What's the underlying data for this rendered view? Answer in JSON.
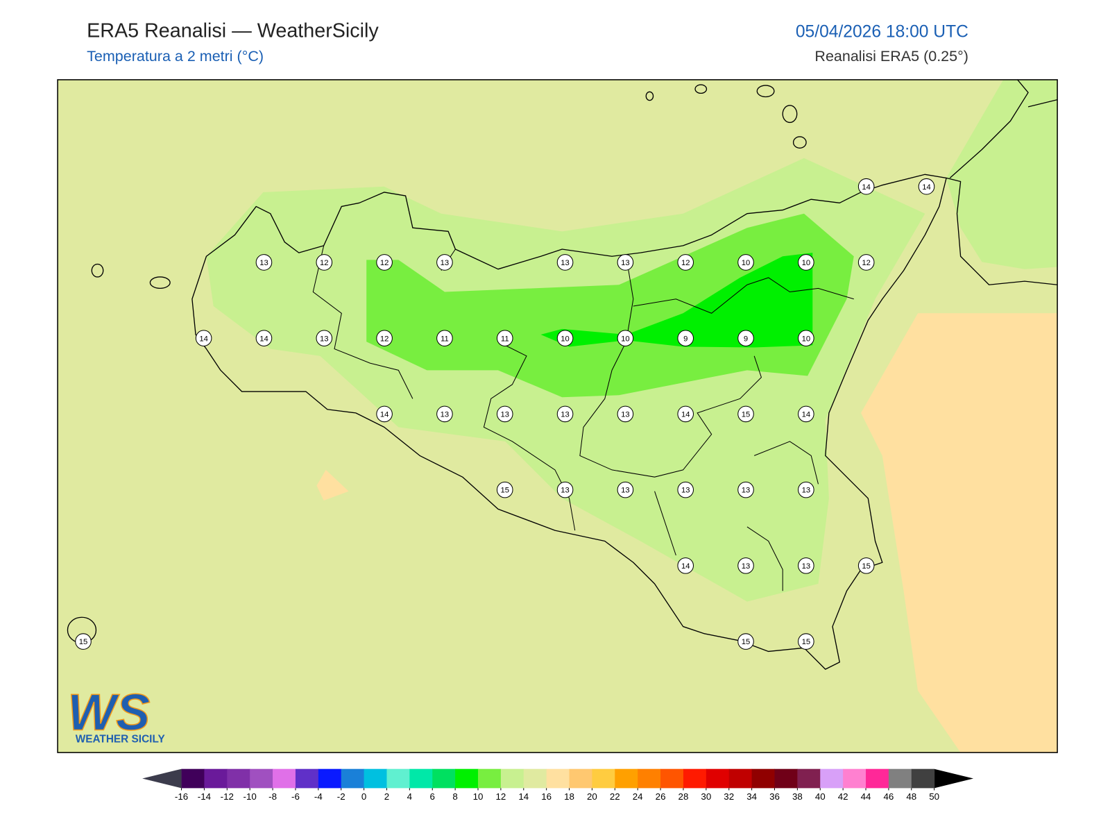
{
  "header": {
    "title": "ERA5 Reanalisi — WeatherSicily",
    "subtitle": "Temperatura a 2 metri (°C)",
    "datetime": "05/04/2026 18:00 UTC",
    "source": "Reanalisi ERA5 (0.25°)"
  },
  "map": {
    "grid_values": [
      [
        null,
        null,
        null,
        null,
        null,
        null,
        null,
        null,
        null,
        null,
        null,
        null,
        null,
        14,
        14
      ],
      [
        null,
        null,
        null,
        13,
        12,
        12,
        13,
        null,
        13,
        13,
        12,
        10,
        10,
        12,
        null
      ],
      [
        null,
        null,
        14,
        14,
        13,
        12,
        11,
        11,
        10,
        10,
        9,
        9,
        10,
        null,
        null
      ],
      [
        null,
        null,
        null,
        null,
        null,
        14,
        13,
        13,
        13,
        13,
        14,
        15,
        14,
        null,
        null
      ],
      [
        null,
        null,
        null,
        null,
        null,
        null,
        null,
        15,
        13,
        13,
        13,
        13,
        13,
        null,
        null
      ],
      [
        null,
        null,
        null,
        null,
        null,
        null,
        null,
        null,
        null,
        null,
        14,
        13,
        13,
        15,
        null
      ],
      [
        15,
        null,
        null,
        null,
        null,
        null,
        null,
        null,
        null,
        null,
        null,
        15,
        15,
        null,
        null
      ]
    ]
  },
  "colorbar": {
    "ticks": [
      -16,
      -14,
      -12,
      -10,
      -8,
      -6,
      -4,
      -2,
      0,
      2,
      4,
      6,
      8,
      10,
      12,
      14,
      16,
      18,
      20,
      22,
      24,
      26,
      28,
      30,
      32,
      34,
      36,
      38,
      40,
      42,
      44,
      46,
      48,
      50
    ],
    "colors": [
      "#40005a",
      "#6a1a9a",
      "#8030a8",
      "#a050c0",
      "#e070e8",
      "#6030c8",
      "#0a1aff",
      "#1a80d8",
      "#00c0e0",
      "#60f0d0",
      "#00e8a8",
      "#00e060",
      "#00f000",
      "#78ee40",
      "#c8f090",
      "#e0eaa0",
      "#ffe0a0",
      "#ffc870",
      "#ffcc40",
      "#ffa000",
      "#ff8000",
      "#ff5500",
      "#ff1a00",
      "#e00000",
      "#c00000",
      "#900000",
      "#700018",
      "#802050",
      "#d8a0f8",
      "#ff80d0",
      "#ff2898",
      "#808080",
      "#404040"
    ],
    "under_color": "#3c3c4c",
    "over_color": "#000000"
  },
  "logo": {
    "mark": "WS",
    "text": "WEATHER SICILY"
  }
}
